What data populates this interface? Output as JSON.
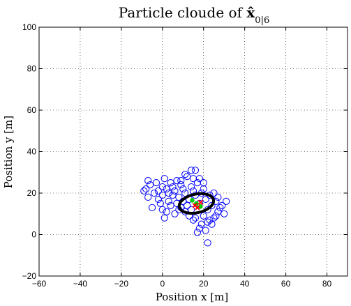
{
  "chart_data": {
    "type": "scatter",
    "title": {
      "prefix": "Particle cloude of ",
      "symbol": "x̂",
      "subscript": "0|6"
    },
    "xlabel": "Position x [m]",
    "ylabel": "Position y [m]",
    "xlim": [
      -60,
      90
    ],
    "ylim": [
      -20,
      100
    ],
    "xticks": [
      -60,
      -40,
      -20,
      0,
      20,
      40,
      60,
      80
    ],
    "yticks": [
      -20,
      0,
      20,
      40,
      60,
      80,
      100
    ],
    "grid": true,
    "grid_style": "dotted",
    "colors": {
      "particles": "#0000ff",
      "ellipse": "#000000",
      "center_green": "#00cc00",
      "center_red": "#ff0000",
      "axes": "#000000",
      "grid": "#000000"
    },
    "series": [
      {
        "kind": "particles",
        "marker": "open-circle",
        "points": [
          [
            -8,
            22
          ],
          [
            -6,
            24
          ],
          [
            -7,
            18
          ],
          [
            -5,
            13
          ],
          [
            -4,
            20
          ],
          [
            -3,
            25
          ],
          [
            -2,
            21
          ],
          [
            -2,
            17
          ],
          [
            0,
            23
          ],
          [
            1,
            27
          ],
          [
            0,
            19
          ],
          [
            -1,
            15
          ],
          [
            2,
            22
          ],
          [
            3,
            20
          ],
          [
            4,
            25
          ],
          [
            5,
            23
          ],
          [
            6,
            21
          ],
          [
            7,
            26
          ],
          [
            8,
            18
          ],
          [
            9,
            24
          ],
          [
            10,
            22
          ],
          [
            11,
            20
          ],
          [
            12,
            28
          ],
          [
            13,
            17
          ],
          [
            14,
            23
          ],
          [
            15,
            21
          ],
          [
            16,
            19
          ],
          [
            17,
            25
          ],
          [
            18,
            15
          ],
          [
            19,
            20
          ],
          [
            20,
            22
          ],
          [
            21,
            17
          ],
          [
            22,
            12
          ],
          [
            23,
            19
          ],
          [
            24,
            14
          ],
          [
            25,
            8
          ],
          [
            26,
            16
          ],
          [
            27,
            11
          ],
          [
            28,
            13
          ],
          [
            30,
            10
          ],
          [
            31,
            16
          ],
          [
            24,
            5
          ],
          [
            22,
            6
          ],
          [
            20,
            9
          ],
          [
            18,
            3
          ],
          [
            17,
            1
          ],
          [
            16,
            8
          ],
          [
            14,
            12
          ],
          [
            12,
            14
          ],
          [
            10,
            16
          ],
          [
            8,
            12
          ],
          [
            6,
            10
          ],
          [
            4,
            14
          ],
          [
            2,
            11
          ],
          [
            3,
            16
          ],
          [
            5,
            19
          ],
          [
            7,
            15
          ],
          [
            9,
            13
          ],
          [
            11,
            11
          ],
          [
            13,
            9
          ],
          [
            15,
            7
          ],
          [
            19,
            5
          ],
          [
            21,
            2
          ],
          [
            23,
            7
          ],
          [
            26,
            9
          ],
          [
            22,
            -4
          ],
          [
            16,
            31
          ],
          [
            14,
            31
          ],
          [
            11,
            29
          ],
          [
            9,
            26
          ],
          [
            -9,
            21
          ],
          [
            -7,
            26
          ],
          [
            1,
            8
          ],
          [
            0,
            12
          ],
          [
            27,
            18
          ],
          [
            29,
            14
          ],
          [
            25,
            20
          ],
          [
            20,
            25
          ],
          [
            18,
            27
          ],
          [
            15,
            27
          ]
        ]
      },
      {
        "kind": "covariance-ellipse",
        "center": [
          16.5,
          15
        ],
        "semi_axes": [
          8.5,
          4.5
        ],
        "rotation_deg": -12
      },
      {
        "kind": "center-marks",
        "green_points": [
          [
            14.5,
            16.5
          ],
          [
            18.5,
            13.5
          ],
          [
            16.5,
            15
          ]
        ],
        "red_points": [
          [
            17,
            13
          ],
          [
            18.5,
            15.5
          ],
          [
            15.8,
            14
          ]
        ]
      }
    ]
  }
}
